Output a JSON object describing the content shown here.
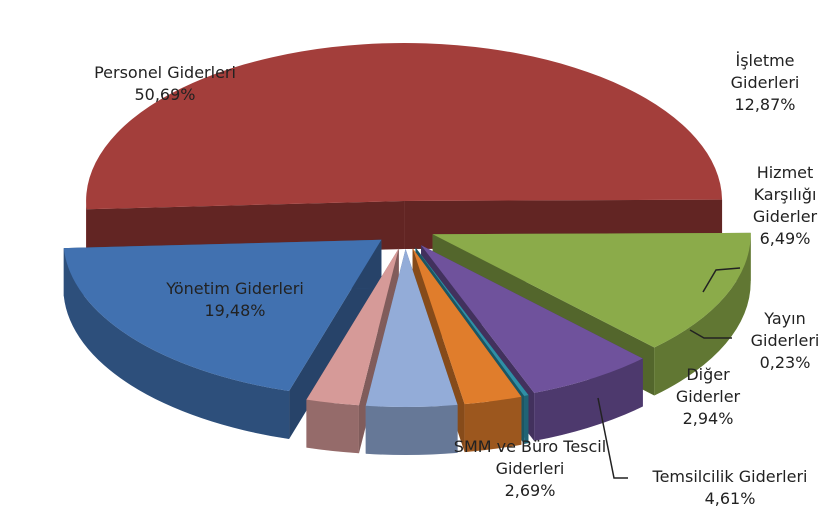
{
  "chart_data": {
    "type": "pie3d",
    "categories": [
      "Personel Giderleri",
      "İşletme Giderleri",
      "Hizmet Karşılığı Giderler",
      "Yayın Giderleri",
      "Diğer Giderler",
      "Temsilcilik Giderleri",
      "SMM ve Büro Tescil Giderleri",
      "Yönetim Giderleri"
    ],
    "values": [
      50.69,
      12.87,
      6.49,
      0.23,
      2.94,
      4.61,
      2.69,
      19.48
    ],
    "value_labels": [
      "50,69%",
      "12,87%",
      "6,49%",
      "0,23%",
      "2,94%",
      "4,61%",
      "2,69%",
      "19,48%"
    ],
    "colors": [
      "#a33e3b",
      "#8bab4a",
      "#6f529c",
      "#2f8fa6",
      "#e07d2c",
      "#93acd8",
      "#d69a98",
      "#4171b0"
    ]
  }
}
